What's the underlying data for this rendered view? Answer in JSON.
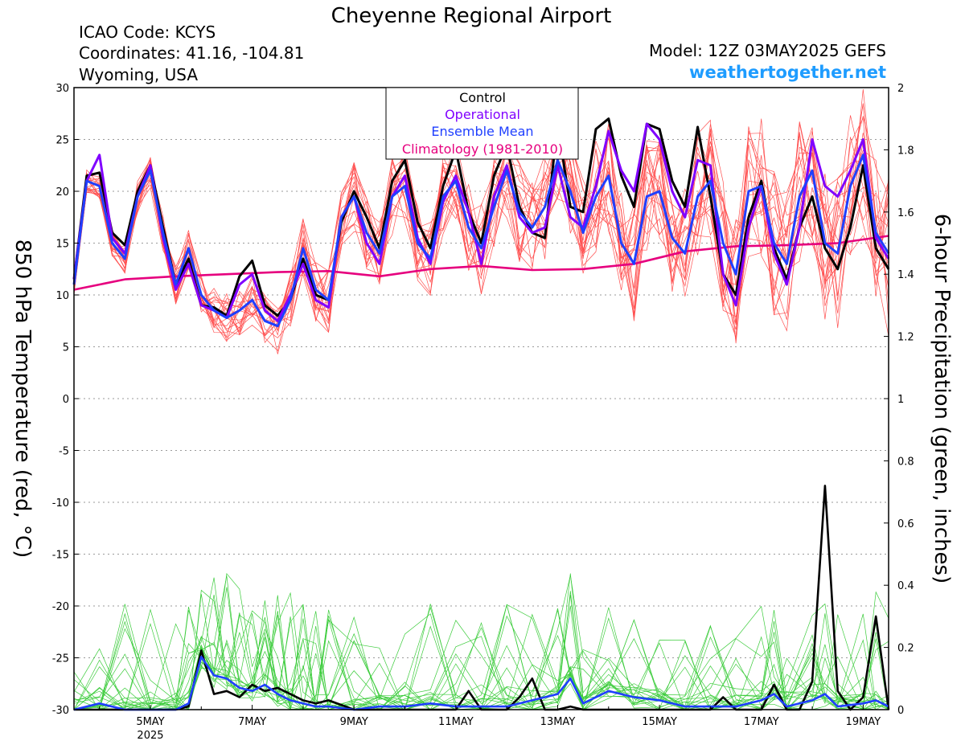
{
  "header": {
    "title": "Cheyenne Regional Airport",
    "icao": "ICAO Code: KCYS",
    "coords": "Coordinates: 41.16, -104.81",
    "region": "Wyoming, USA",
    "model": "Model: 12Z 03MAY2025 GEFS",
    "site": "weathertogether.net"
  },
  "colors": {
    "control": "#000000",
    "operational": "#8000ff",
    "ensemble_mean": "#1f3fff",
    "climatology": "#e6007e",
    "members_temp": "#ff5050",
    "members_precip": "#3ccc3c",
    "site": "#1e9cff"
  },
  "chart_data": {
    "type": "line",
    "title": "Cheyenne Regional Airport",
    "ylabel_left": "850 hPa Temperature (red, °C)",
    "ylabel_right": "6-hour Precipitation (green, inches)",
    "ylim_left": [
      -30,
      30
    ],
    "ylim_right": [
      0,
      2
    ],
    "yticks_left": [
      "30",
      "25",
      "20",
      "15",
      "10",
      "5",
      "0",
      "-5",
      "-10",
      "-15",
      "-20",
      "-25",
      "-30"
    ],
    "yticks_right": [
      "2",
      "1.8",
      "1.6",
      "1.4",
      "1.2",
      "1",
      "0.8",
      "0.6",
      "0.4",
      "0.2",
      "0"
    ],
    "xlim_day": [
      3.5,
      19.5
    ],
    "xticks": [
      {
        "day": 5,
        "label": "5MAY",
        "sub": "2025"
      },
      {
        "day": 7,
        "label": "7MAY",
        "sub": ""
      },
      {
        "day": 9,
        "label": "9MAY",
        "sub": ""
      },
      {
        "day": 11,
        "label": "11MAY",
        "sub": ""
      },
      {
        "day": 13,
        "label": "13MAY",
        "sub": ""
      },
      {
        "day": 15,
        "label": "15MAY",
        "sub": ""
      },
      {
        "day": 17,
        "label": "17MAY",
        "sub": ""
      },
      {
        "day": 19,
        "label": "19MAY",
        "sub": ""
      }
    ],
    "grid": true,
    "legend_position": "top-center",
    "legend": [
      "Control",
      "Operational",
      "Ensemble Mean",
      "Climatology (1981-2010)"
    ],
    "temperature_series": [
      {
        "name": "Control",
        "x": [
          3.5,
          3.75,
          4.0,
          4.25,
          4.5,
          4.75,
          5.0,
          5.25,
          5.5,
          5.75,
          6.0,
          6.25,
          6.5,
          6.75,
          7.0,
          7.25,
          7.5,
          7.75,
          8.0,
          8.25,
          8.5,
          8.75,
          9.0,
          9.25,
          9.5,
          9.75,
          10.0,
          10.25,
          10.5,
          10.75,
          11.0,
          11.25,
          11.5,
          11.75,
          12.0,
          12.25,
          12.5,
          12.75,
          13.0,
          13.25,
          13.5,
          13.75,
          14.0,
          14.25,
          14.5,
          14.75,
          15.0,
          15.25,
          15.5,
          15.75,
          16.0,
          16.25,
          16.5,
          16.75,
          17.0,
          17.25,
          17.5,
          17.75,
          18.0,
          18.25,
          18.5,
          18.75,
          19.0,
          19.25,
          19.5
        ],
        "values": [
          11.5,
          21.5,
          21.8,
          16.0,
          14.8,
          20.0,
          22.5,
          16.5,
          11.0,
          13.5,
          9.0,
          8.8,
          8.0,
          11.8,
          13.3,
          9.0,
          8.0,
          9.5,
          13.5,
          10.0,
          9.5,
          17.0,
          20.0,
          17.5,
          14.5,
          21.0,
          23.0,
          17.0,
          14.5,
          20.5,
          24.0,
          18.0,
          15.0,
          21.5,
          24.5,
          18.5,
          16.0,
          15.5,
          26.5,
          18.5,
          18.0,
          26.0,
          27.0,
          21.5,
          18.5,
          26.5,
          26.0,
          21.0,
          18.5,
          26.2,
          19.5,
          12.0,
          10.0,
          17.5,
          21.0,
          14.5,
          11.5,
          16.5,
          19.5,
          14.5,
          12.5,
          16.5,
          22.5,
          14.5,
          12.5
        ]
      },
      {
        "name": "Operational",
        "x": [
          3.5,
          3.75,
          4.0,
          4.25,
          4.5,
          4.75,
          5.0,
          5.25,
          5.5,
          5.75,
          6.0,
          6.25,
          6.5,
          6.75,
          7.0,
          7.25,
          7.5,
          7.75,
          8.0,
          8.25,
          8.5,
          8.75,
          9.0,
          9.25,
          9.5,
          9.75,
          10.0,
          10.25,
          10.5,
          10.75,
          11.0,
          11.25,
          11.5,
          11.75,
          12.0,
          12.25,
          12.5,
          12.75,
          13.0,
          13.25,
          13.5,
          13.75,
          14.0,
          14.25,
          14.5,
          14.75,
          15.0,
          15.25,
          15.5,
          15.75,
          16.0,
          16.25,
          16.5,
          16.75,
          17.0,
          17.25,
          17.5,
          17.75,
          18.0,
          18.25,
          18.5,
          18.75,
          19.0,
          19.25,
          19.5
        ],
        "values": [
          11.5,
          21.0,
          23.5,
          15.5,
          14.0,
          19.5,
          22.5,
          15.5,
          10.5,
          13.0,
          9.0,
          8.5,
          7.8,
          11.0,
          12.0,
          8.5,
          7.5,
          10.0,
          13.0,
          9.5,
          8.8,
          17.5,
          19.5,
          15.0,
          13.0,
          19.5,
          21.5,
          15.5,
          13.0,
          19.0,
          21.5,
          18.0,
          13.0,
          19.5,
          22.5,
          17.5,
          16.0,
          16.5,
          22.5,
          17.5,
          16.5,
          20.5,
          25.8,
          22.0,
          20.0,
          26.5,
          25.0,
          20.0,
          17.5,
          23.0,
          22.5,
          12.0,
          9.0,
          16.5,
          20.5,
          14.0,
          11.0,
          16.5,
          25.0,
          20.5,
          19.5,
          22.0,
          25.0,
          15.5,
          13.5
        ]
      },
      {
        "name": "Ensemble Mean",
        "x": [
          3.5,
          3.75,
          4.0,
          4.25,
          4.5,
          4.75,
          5.0,
          5.25,
          5.5,
          5.75,
          6.0,
          6.25,
          6.5,
          6.75,
          7.0,
          7.25,
          7.5,
          7.75,
          8.0,
          8.25,
          8.5,
          8.75,
          9.0,
          9.25,
          9.5,
          9.75,
          10.0,
          10.25,
          10.5,
          10.75,
          11.0,
          11.25,
          11.5,
          11.75,
          12.0,
          12.25,
          12.5,
          12.75,
          13.0,
          13.25,
          13.5,
          13.75,
          14.0,
          14.25,
          14.5,
          14.75,
          15.0,
          15.25,
          15.5,
          15.75,
          16.0,
          16.25,
          16.5,
          16.75,
          17.0,
          17.25,
          17.5,
          17.75,
          18.0,
          18.25,
          18.5,
          18.75,
          19.0,
          19.25,
          19.5
        ],
        "values": [
          11.0,
          21.0,
          20.5,
          15.0,
          13.5,
          19.5,
          22.0,
          16.0,
          11.0,
          14.5,
          10.0,
          8.5,
          7.8,
          8.5,
          9.5,
          7.5,
          7.0,
          9.5,
          14.5,
          10.5,
          9.5,
          17.5,
          19.5,
          16.0,
          14.0,
          19.5,
          20.5,
          15.0,
          13.5,
          19.5,
          21.0,
          16.5,
          14.5,
          18.5,
          22.0,
          18.0,
          16.5,
          18.5,
          23.0,
          20.0,
          16.0,
          19.5,
          21.5,
          15.0,
          13.0,
          19.5,
          20.0,
          15.5,
          14.0,
          19.5,
          21.0,
          15.0,
          12.0,
          20.0,
          20.5,
          15.0,
          13.0,
          19.5,
          22.0,
          15.0,
          14.0,
          20.5,
          23.5,
          16.0,
          14.0
        ]
      },
      {
        "name": "Climatology (1981-2010)",
        "x": [
          3.5,
          4.5,
          5.5,
          6.5,
          7.5,
          8.5,
          9.5,
          10.5,
          11.5,
          12.5,
          13.5,
          14.5,
          15.5,
          16.5,
          17.5,
          18.5,
          19.5
        ],
        "values": [
          10.5,
          11.5,
          11.8,
          12.0,
          12.2,
          12.3,
          11.8,
          12.5,
          12.8,
          12.4,
          12.5,
          13.0,
          14.2,
          14.7,
          14.8,
          15.0,
          15.7
        ]
      }
    ],
    "precipitation_series": [
      {
        "name": "Control",
        "x": [
          3.5,
          4.0,
          4.5,
          5.0,
          5.5,
          5.75,
          6.0,
          6.25,
          6.5,
          6.75,
          7.0,
          7.25,
          7.5,
          7.75,
          8.0,
          8.25,
          8.5,
          9.0,
          9.5,
          10.0,
          10.5,
          11.0,
          11.25,
          11.5,
          12.0,
          12.25,
          12.5,
          12.75,
          13.0,
          13.25,
          13.5,
          14.0,
          14.5,
          15.0,
          15.5,
          16.0,
          16.25,
          16.5,
          16.75,
          17.0,
          17.25,
          17.5,
          17.75,
          18.0,
          18.25,
          18.5,
          18.75,
          19.0,
          19.25,
          19.5
        ],
        "values": [
          0,
          0,
          0,
          0,
          0,
          0.01,
          0.19,
          0.05,
          0.06,
          0.04,
          0.08,
          0.06,
          0.07,
          0.05,
          0.03,
          0.02,
          0.03,
          0,
          0,
          0,
          0,
          0,
          0.06,
          0,
          0,
          0.04,
          0.1,
          0,
          0,
          0.01,
          0,
          0,
          0,
          0,
          0,
          0,
          0.04,
          0,
          0,
          0,
          0.08,
          0,
          0,
          0.09,
          0.72,
          0.06,
          0,
          0.04,
          0.3,
          0
        ]
      },
      {
        "name": "Ensemble Mean",
        "x": [
          3.5,
          4.0,
          4.5,
          5.0,
          5.5,
          5.75,
          6.0,
          6.25,
          6.5,
          6.75,
          7.0,
          7.25,
          7.5,
          7.75,
          8.0,
          8.25,
          8.5,
          9.0,
          9.5,
          10.0,
          10.5,
          11.0,
          11.5,
          12.0,
          12.5,
          13.0,
          13.25,
          13.5,
          14.0,
          14.5,
          15.0,
          15.5,
          16.0,
          16.5,
          17.0,
          17.25,
          17.5,
          18.0,
          18.25,
          18.5,
          19.0,
          19.25,
          19.5
        ],
        "values": [
          0,
          0.02,
          0,
          0,
          0,
          0.02,
          0.17,
          0.11,
          0.1,
          0.07,
          0.06,
          0.08,
          0.05,
          0.03,
          0.02,
          0.01,
          0.01,
          0,
          0.01,
          0.01,
          0.02,
          0.01,
          0.01,
          0.01,
          0.03,
          0.05,
          0.1,
          0.02,
          0.06,
          0.04,
          0.03,
          0.01,
          0.01,
          0.01,
          0.03,
          0.05,
          0.01,
          0.03,
          0.05,
          0.01,
          0.02,
          0.03,
          0.01
        ]
      }
    ],
    "member_envelope_note": "thin red (temperature) and green (precipitation) lines are individual ensemble members"
  }
}
